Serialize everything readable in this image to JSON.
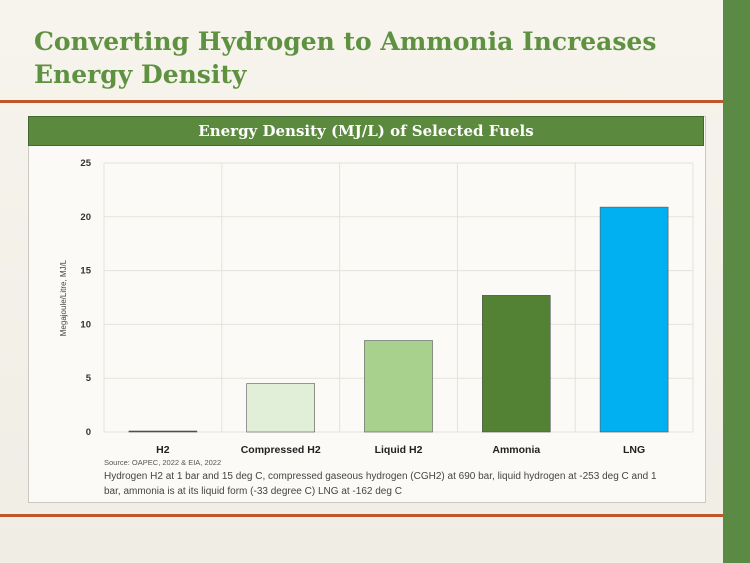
{
  "slide": {
    "title": "Converting Hydrogen to Ammonia Increases Energy Density"
  },
  "chart": {
    "header": "Energy Density (MJ/L) of Selected Fuels",
    "source": "Source: OAPEC, 2022 & EIA, 2022",
    "note": "Hydrogen H2 at 1 bar and 15 deg C, compressed gaseous hydrogen (CGH2) at 690 bar, liquid hydrogen at -253 deg C and 1 bar, ammonia is at its liquid form (-33 degree C) LNG at -162 deg C"
  },
  "chart_data": {
    "type": "bar",
    "title": "Energy Density (MJ/L) of Selected Fuels",
    "xlabel": "",
    "ylabel": "Megajoule/Litre, MJ/L",
    "ylim": [
      0,
      25
    ],
    "yticks": [
      0,
      5,
      10,
      15,
      20,
      25
    ],
    "grid": true,
    "categories": [
      "H2",
      "Compressed H2",
      "Liquid H2",
      "Ammonia",
      "LNG"
    ],
    "values": [
      0.01,
      4.5,
      8.5,
      12.7,
      20.9
    ],
    "colors": [
      "#2f5a2a",
      "#e1efd8",
      "#a9d18e",
      "#548235",
      "#00b0f0"
    ]
  },
  "colors": {
    "title": "#5e9140",
    "header_bg": "#5b8a3e",
    "rule": "#c0562b",
    "side_bar": "#5b8a45"
  }
}
